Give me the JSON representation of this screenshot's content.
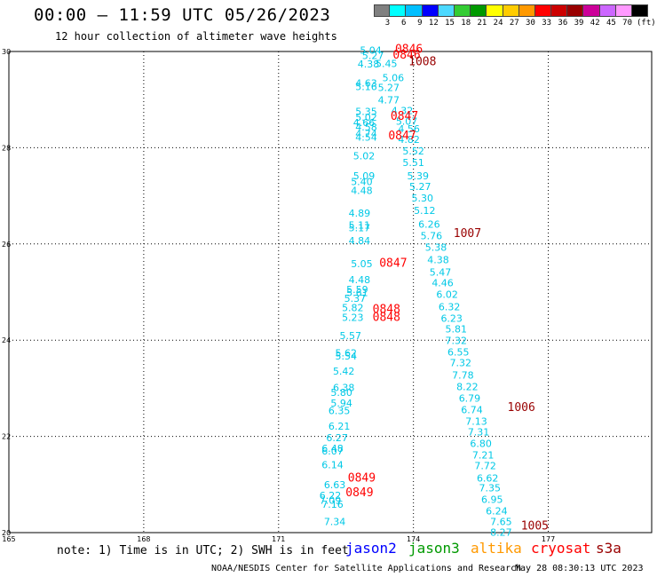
{
  "header": {
    "title": "00:00 – 11:59 UTC 05/26/2023",
    "subtitle": "12 hour collection of altimeter wave heights"
  },
  "colorbar": {
    "colors": [
      "#808080",
      "#00ffff",
      "#00bfff",
      "#0000ff",
      "#4cd9ff",
      "#33cc33",
      "#009900",
      "#ffff00",
      "#ffcc00",
      "#ff9900",
      "#ff0000",
      "#cc0000",
      "#990000",
      "#cc0099",
      "#cc66ff",
      "#ff99ff",
      "#000000"
    ],
    "labels": [
      "3",
      "6",
      "9",
      "12",
      "15",
      "18",
      "21",
      "24",
      "27",
      "30",
      "33",
      "36",
      "39",
      "42",
      "45",
      "70"
    ],
    "unit": "(ft)"
  },
  "footer": {
    "note": "note: 1) Time is in UTC; 2) SWH is in feet",
    "legend": [
      {
        "label": "jason2",
        "color": "#0000ff"
      },
      {
        "label": "jason3",
        "color": "#009900"
      },
      {
        "label": "altika",
        "color": "#ff9900"
      },
      {
        "label": "cryosat",
        "color": "#ff0000"
      },
      {
        "label": "s3a",
        "color": "#990000"
      }
    ],
    "credit": "NOAA/NESDIS Center for Satellite Applications and Research",
    "timestamp": "May 28 08:30:13 UTC 2023"
  },
  "chart_data": {
    "type": "scatter",
    "xlim": [
      165,
      179.3
    ],
    "ylim": [
      20,
      30
    ],
    "x_ticks": [
      165,
      168,
      171,
      174,
      177
    ],
    "y_ticks": [
      {
        "value": 20,
        "label": "20"
      },
      {
        "value": 22,
        "label": "22"
      },
      {
        "value": 24,
        "label": "24"
      },
      {
        "value": 26,
        "label": "26"
      },
      {
        "value": 28,
        "label": "28"
      },
      {
        "value": 30,
        "label": "30"
      }
    ],
    "grid": true,
    "swh_color": "#00c8e6",
    "series": [
      {
        "name": "pass1-swh",
        "points": [
          [
            173.05,
            29.95,
            "5.04"
          ],
          [
            173.1,
            29.84,
            "5.27"
          ],
          [
            173.0,
            29.67,
            "4.38"
          ],
          [
            173.4,
            29.68,
            "5.45"
          ],
          [
            173.55,
            29.38,
            "5.06"
          ],
          [
            172.95,
            29.27,
            "4.63"
          ],
          [
            172.95,
            29.2,
            "5.16"
          ],
          [
            173.45,
            29.18,
            "5.27"
          ],
          [
            173.45,
            28.92,
            "4.77"
          ],
          [
            172.95,
            28.68,
            "5.35"
          ],
          [
            173.75,
            28.7,
            "4.32"
          ],
          [
            172.95,
            28.56,
            "5.02"
          ],
          [
            172.9,
            28.45,
            "4.66"
          ],
          [
            173.85,
            28.48,
            "5.07"
          ],
          [
            172.95,
            28.36,
            "4.58"
          ],
          [
            173.9,
            28.32,
            "4.56"
          ],
          [
            172.95,
            28.22,
            "4.74"
          ],
          [
            172.95,
            28.15,
            "4.54"
          ],
          [
            173.9,
            28.1,
            "4.82"
          ],
          [
            174.0,
            27.86,
            "5.52"
          ],
          [
            172.9,
            27.76,
            "5.02"
          ],
          [
            174.0,
            27.62,
            "5.51"
          ],
          [
            174.1,
            27.34,
            "5.39"
          ],
          [
            172.9,
            27.34,
            "5.09"
          ],
          [
            172.85,
            27.22,
            "5.40"
          ],
          [
            174.15,
            27.12,
            "5.27"
          ],
          [
            172.85,
            27.04,
            "4.48"
          ],
          [
            174.2,
            26.88,
            "5.30"
          ],
          [
            174.25,
            26.62,
            "5.12"
          ],
          [
            172.8,
            26.57,
            "4.89"
          ],
          [
            174.35,
            26.34,
            "6.26"
          ],
          [
            172.8,
            26.32,
            "5.11"
          ],
          [
            172.8,
            26.26,
            "5.17"
          ],
          [
            174.4,
            26.1,
            "5.76"
          ],
          [
            172.8,
            26.0,
            "4.84"
          ],
          [
            174.5,
            25.86,
            "5.38"
          ],
          [
            174.55,
            25.6,
            "4.38"
          ],
          [
            172.85,
            25.52,
            "5.05"
          ],
          [
            174.6,
            25.34,
            "5.47"
          ],
          [
            172.8,
            25.18,
            "4.48"
          ],
          [
            174.65,
            25.12,
            "4.46"
          ],
          [
            172.75,
            24.98,
            "5.59"
          ],
          [
            172.75,
            24.92,
            "5.61"
          ],
          [
            174.75,
            24.88,
            "6.02"
          ],
          [
            172.7,
            24.8,
            "5.37"
          ],
          [
            174.8,
            24.62,
            "6.32"
          ],
          [
            172.65,
            24.6,
            "5.82"
          ],
          [
            174.85,
            24.38,
            "6.23"
          ],
          [
            172.65,
            24.4,
            "5.23"
          ],
          [
            174.95,
            24.16,
            "5.81"
          ],
          [
            172.6,
            24.02,
            "5.57"
          ],
          [
            174.95,
            23.92,
            "7.32"
          ],
          [
            175.0,
            23.68,
            "6.55"
          ],
          [
            172.5,
            23.66,
            "5.62"
          ],
          [
            172.5,
            23.6,
            "5.54"
          ],
          [
            175.05,
            23.46,
            "7.32"
          ],
          [
            172.45,
            23.28,
            "5.42"
          ],
          [
            175.1,
            23.2,
            "7.78"
          ],
          [
            172.45,
            22.94,
            "6.38"
          ],
          [
            175.2,
            22.96,
            "8.22"
          ],
          [
            172.4,
            22.84,
            "5.80"
          ],
          [
            175.25,
            22.72,
            "6.79"
          ],
          [
            172.4,
            22.62,
            "5.94"
          ],
          [
            175.3,
            22.48,
            "6.74"
          ],
          [
            172.35,
            22.46,
            "6.35"
          ],
          [
            175.4,
            22.24,
            "7.13"
          ],
          [
            172.35,
            22.14,
            "6.21"
          ],
          [
            175.45,
            22.02,
            "7.31"
          ],
          [
            172.3,
            21.9,
            "6.27"
          ],
          [
            175.5,
            21.78,
            "6.80"
          ],
          [
            172.2,
            21.68,
            "6.48"
          ],
          [
            172.2,
            21.62,
            "6.07"
          ],
          [
            175.55,
            21.54,
            "7.21"
          ],
          [
            172.2,
            21.34,
            "6.14"
          ],
          [
            175.6,
            21.32,
            "7.72"
          ],
          [
            175.65,
            21.06,
            "6.62"
          ],
          [
            172.25,
            20.92,
            "6.63"
          ],
          [
            175.7,
            20.86,
            "7.35"
          ],
          [
            172.15,
            20.7,
            "6.22"
          ],
          [
            175.75,
            20.62,
            "6.95"
          ],
          [
            172.15,
            20.6,
            "7.09"
          ],
          [
            172.2,
            20.52,
            "7.16"
          ],
          [
            175.85,
            20.38,
            "6.24"
          ],
          [
            175.95,
            20.16,
            "7.65"
          ],
          [
            172.25,
            20.16,
            "7.34"
          ],
          [
            175.95,
            19.94,
            "8.27"
          ]
        ]
      },
      {
        "name": "time-labels",
        "points": [
          [
            173.9,
            29.97,
            "0846",
            "#ff0000"
          ],
          [
            173.85,
            29.85,
            "0846",
            "#ff0000"
          ],
          [
            174.2,
            29.71,
            "1008",
            "#990000"
          ],
          [
            173.8,
            28.58,
            "0847",
            "#ff0000"
          ],
          [
            173.75,
            28.17,
            "0847",
            "#ff0000"
          ],
          [
            175.2,
            26.14,
            "1007",
            "#990000"
          ],
          [
            173.55,
            25.53,
            "0847",
            "#ff0000"
          ],
          [
            173.4,
            24.57,
            "0848",
            "#ff0000"
          ],
          [
            173.4,
            24.4,
            "0848",
            "#ff0000"
          ],
          [
            176.4,
            22.53,
            "1006",
            "#990000"
          ],
          [
            172.85,
            21.06,
            "0849",
            "#ff0000"
          ],
          [
            172.8,
            20.76,
            "0849",
            "#ff0000"
          ],
          [
            176.7,
            20.06,
            "1005",
            "#990000"
          ]
        ]
      }
    ]
  }
}
